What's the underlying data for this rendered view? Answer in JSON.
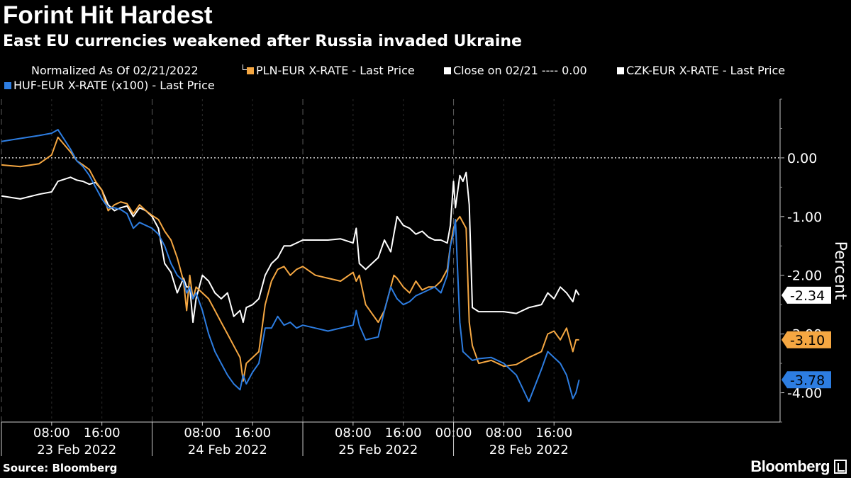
{
  "header": {
    "title": "Forint Hit Hardest",
    "subtitle": "East EU currencies weakened after Russia invaded Ukraine"
  },
  "legend": {
    "note": "Normalized As Of 02/21/2022",
    "items": [
      {
        "label": "PLN-EUR X-RATE - Last Price",
        "color": "#f5a742"
      },
      {
        "label": "Close on 02/21 ---- 0.00",
        "color": "#ffffff"
      },
      {
        "label": "CZK-EUR X-RATE - Last Price",
        "color": "#ffffff"
      },
      {
        "label": "HUF-EUR X-RATE (x100) - Last Price",
        "color": "#2d7de1"
      }
    ]
  },
  "footer": {
    "source": "Source: Bloomberg",
    "brand": "Bloomberg"
  },
  "chart_data": {
    "type": "line",
    "ylabel": "Percent",
    "ylim": [
      -4.5,
      1.0
    ],
    "yticks": [
      0.0,
      -1.0,
      -2.0,
      -3.0,
      -4.0
    ],
    "ytick_labels": [
      "0.00",
      "-1.00",
      "-2.00",
      "-3.00",
      "-4.00"
    ],
    "xlim": [
      0,
      124
    ],
    "x_unit": "hours since 23 Feb 2022 00:00 (trading time, weekend removed)",
    "xticks": [
      {
        "x": 8,
        "label": "08:00"
      },
      {
        "x": 16,
        "label": "16:00"
      },
      {
        "x": 32,
        "label": "08:00"
      },
      {
        "x": 40,
        "label": "16:00"
      },
      {
        "x": 56,
        "label": "08:00"
      },
      {
        "x": 64,
        "label": "16:00"
      },
      {
        "x": 72,
        "label": "00:00"
      },
      {
        "x": 80,
        "label": "08:00"
      },
      {
        "x": 88,
        "label": "16:00"
      }
    ],
    "day_labels": [
      {
        "x": 12,
        "label": "23 Feb 2022"
      },
      {
        "x": 36,
        "label": "24 Feb 2022"
      },
      {
        "x": 60,
        "label": "25 Feb 2022"
      },
      {
        "x": 84,
        "label": "28 Feb 2022"
      }
    ],
    "day_boundaries": [
      0,
      24,
      48,
      72
    ],
    "reference_line": {
      "y": 0.0,
      "label": "Close on 02/21 ---- 0.00"
    },
    "last_value_tags": [
      {
        "series": "CZK-EUR X-RATE - Last Price",
        "label": "-2.34",
        "y": -2.34
      },
      {
        "series": "PLN-EUR X-RATE - Last Price",
        "label": "-3.10",
        "y": -3.1
      },
      {
        "series": "HUF-EUR X-RATE (x100) - Last Price",
        "label": "-3.78",
        "y": -3.78
      }
    ],
    "series": [
      {
        "name": "CZK-EUR X-RATE - Last Price",
        "color": "#ffffff",
        "x": [
          0,
          3,
          6,
          8,
          9,
          11,
          12,
          13,
          14,
          15,
          16,
          17,
          18,
          19,
          20,
          21,
          22,
          23,
          24,
          25,
          26,
          27,
          28,
          29,
          29.5,
          30,
          30.5,
          31,
          32,
          33,
          34,
          35,
          36,
          37,
          38,
          38.5,
          39,
          40,
          41,
          42,
          43,
          44,
          45,
          46,
          47,
          48,
          50,
          52,
          54,
          56,
          56.5,
          57,
          58,
          60,
          61,
          62,
          62.5,
          63,
          64,
          65,
          66,
          67,
          68,
          69,
          70,
          71,
          71.5,
          72,
          72.3,
          73,
          73.5,
          74,
          74.5,
          75,
          76,
          78,
          80,
          82,
          84,
          86,
          87,
          88,
          89,
          90,
          91,
          91.5,
          92
        ],
        "y": [
          -0.65,
          -0.7,
          -0.62,
          -0.58,
          -0.4,
          -0.33,
          -0.38,
          -0.4,
          -0.45,
          -0.42,
          -0.55,
          -0.8,
          -0.9,
          -0.85,
          -0.82,
          -1.0,
          -0.85,
          -0.9,
          -1.0,
          -1.2,
          -1.8,
          -1.95,
          -2.3,
          -2.05,
          -2.2,
          -2.2,
          -2.8,
          -2.4,
          -2.0,
          -2.1,
          -2.3,
          -2.4,
          -2.3,
          -2.7,
          -2.6,
          -2.8,
          -2.55,
          -2.5,
          -2.4,
          -2.0,
          -1.8,
          -1.7,
          -1.5,
          -1.5,
          -1.45,
          -1.4,
          -1.4,
          -1.4,
          -1.38,
          -1.45,
          -1.2,
          -1.8,
          -1.9,
          -1.7,
          -1.4,
          -1.6,
          -1.3,
          -1.0,
          -1.15,
          -1.2,
          -1.3,
          -1.25,
          -1.35,
          -1.4,
          -1.4,
          -1.45,
          -1.15,
          -0.4,
          -0.85,
          -0.3,
          -0.4,
          -0.25,
          -0.8,
          -2.55,
          -2.62,
          -2.62,
          -2.62,
          -2.65,
          -2.55,
          -2.5,
          -2.3,
          -2.4,
          -2.2,
          -2.3,
          -2.45,
          -2.25,
          -2.34
        ]
      },
      {
        "name": "PLN-EUR X-RATE - Last Price",
        "color": "#f5a742",
        "x": [
          0,
          3,
          6,
          8,
          9,
          11,
          12,
          13,
          14,
          15,
          16,
          17,
          18,
          19,
          20,
          21,
          22,
          23,
          24,
          25,
          26,
          27,
          28,
          29,
          29.5,
          30,
          30.5,
          31,
          32,
          33,
          34,
          35,
          36,
          37,
          38,
          38.5,
          39,
          40,
          41,
          42,
          43,
          44,
          45,
          46,
          47,
          48,
          50,
          52,
          54,
          56,
          56.5,
          57,
          58,
          60,
          61,
          62,
          62.5,
          63,
          64,
          65,
          66,
          67,
          68,
          69,
          70,
          71,
          71.5,
          72,
          72.3,
          73,
          73.5,
          74,
          74.5,
          75,
          76,
          78,
          80,
          82,
          84,
          86,
          87,
          88,
          89,
          90,
          91,
          91.5,
          92
        ],
        "y": [
          -0.12,
          -0.15,
          -0.1,
          0.05,
          0.35,
          0.1,
          -0.05,
          -0.12,
          -0.2,
          -0.4,
          -0.55,
          -0.9,
          -0.8,
          -0.75,
          -0.78,
          -0.95,
          -0.8,
          -0.9,
          -0.98,
          -1.05,
          -1.25,
          -1.4,
          -1.7,
          -2.1,
          -2.6,
          -2.0,
          -2.4,
          -2.2,
          -2.3,
          -2.4,
          -2.6,
          -2.8,
          -3.0,
          -3.2,
          -3.4,
          -3.8,
          -3.5,
          -3.4,
          -3.3,
          -2.5,
          -2.1,
          -1.9,
          -1.85,
          -2.0,
          -1.9,
          -1.85,
          -2.0,
          -2.05,
          -2.1,
          -1.95,
          -2.1,
          -2.0,
          -2.5,
          -2.8,
          -2.6,
          -2.2,
          -2.0,
          -2.05,
          -2.2,
          -2.3,
          -2.1,
          -2.25,
          -2.2,
          -2.2,
          -2.1,
          -1.9,
          -1.5,
          -1.2,
          -1.1,
          -1.0,
          -1.1,
          -1.2,
          -2.8,
          -3.2,
          -3.5,
          -3.45,
          -3.55,
          -3.52,
          -3.4,
          -3.3,
          -3.0,
          -2.95,
          -3.1,
          -2.9,
          -3.3,
          -3.1,
          -3.1
        ]
      },
      {
        "name": "HUF-EUR X-RATE (x100) - Last Price",
        "color": "#2d7de1",
        "x": [
          0,
          3,
          6,
          8,
          9,
          11,
          12,
          13,
          14,
          15,
          16,
          17,
          18,
          19,
          20,
          21,
          22,
          23,
          24,
          25,
          26,
          27,
          28,
          29,
          29.5,
          30,
          30.5,
          31,
          32,
          33,
          34,
          35,
          36,
          37,
          38,
          38.5,
          39,
          40,
          41,
          42,
          43,
          44,
          45,
          46,
          47,
          48,
          50,
          52,
          54,
          56,
          56.5,
          57,
          58,
          60,
          61,
          62,
          62.5,
          63,
          64,
          65,
          66,
          67,
          68,
          69,
          70,
          71,
          71.5,
          72,
          72.3,
          73,
          73.5,
          74,
          74.5,
          75,
          76,
          78,
          80,
          82,
          84,
          86,
          87,
          88,
          89,
          90,
          91,
          91.5,
          92
        ],
        "y": [
          0.28,
          0.33,
          0.38,
          0.42,
          0.48,
          0.15,
          -0.05,
          -0.15,
          -0.3,
          -0.5,
          -0.7,
          -0.85,
          -0.85,
          -0.88,
          -0.95,
          -1.2,
          -1.1,
          -1.15,
          -1.2,
          -1.3,
          -1.5,
          -1.8,
          -2.0,
          -2.1,
          -2.3,
          -2.2,
          -2.4,
          -2.3,
          -2.6,
          -3.0,
          -3.3,
          -3.5,
          -3.7,
          -3.85,
          -3.95,
          -3.7,
          -3.85,
          -3.65,
          -3.5,
          -2.9,
          -2.9,
          -2.7,
          -2.85,
          -2.8,
          -2.9,
          -2.85,
          -2.9,
          -2.95,
          -2.9,
          -2.85,
          -2.6,
          -2.85,
          -3.1,
          -3.05,
          -2.6,
          -2.2,
          -2.3,
          -2.4,
          -2.5,
          -2.45,
          -2.35,
          -2.3,
          -2.25,
          -2.2,
          -2.3,
          -2.0,
          -1.5,
          -1.3,
          -1.05,
          -2.8,
          -3.3,
          -3.35,
          -3.4,
          -3.45,
          -3.42,
          -3.4,
          -3.5,
          -3.7,
          -4.15,
          -3.6,
          -3.3,
          -3.4,
          -3.5,
          -3.7,
          -4.1,
          -4.0,
          -3.78
        ]
      }
    ]
  }
}
